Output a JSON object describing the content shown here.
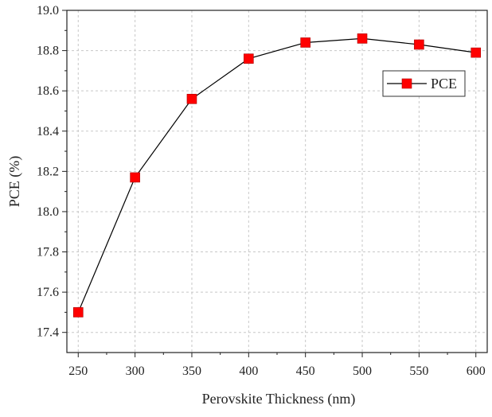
{
  "chart_data": {
    "type": "line",
    "title": "",
    "xlabel": "Perovskite Thickness (nm)",
    "ylabel": "PCE (%)",
    "xlim": [
      240,
      610
    ],
    "ylim": [
      17.3,
      19.0
    ],
    "x_ticks": [
      250,
      300,
      350,
      400,
      450,
      500,
      550,
      600
    ],
    "x_tick_labels": [
      "250",
      "300",
      "350",
      "400",
      "450",
      "500",
      "550",
      "600"
    ],
    "y_ticks": [
      17.4,
      17.6,
      17.8,
      18.0,
      18.2,
      18.4,
      18.6,
      18.8,
      19.0
    ],
    "y_tick_labels": [
      "17.4",
      "17.6",
      "17.8",
      "18.0",
      "18.2",
      "18.4",
      "18.6",
      "18.8",
      "19.0"
    ],
    "grid": true,
    "legend_position": "top-right",
    "series": [
      {
        "name": "PCE",
        "marker": "square",
        "line_color": "#000000",
        "marker_color": "#ff0000",
        "points": [
          {
            "x": 250,
            "y": 17.5
          },
          {
            "x": 300,
            "y": 18.17
          },
          {
            "x": 350,
            "y": 18.56
          },
          {
            "x": 400,
            "y": 18.76
          },
          {
            "x": 450,
            "y": 18.84
          },
          {
            "x": 500,
            "y": 18.86
          },
          {
            "x": 550,
            "y": 18.83
          },
          {
            "x": 600,
            "y": 18.79
          }
        ]
      }
    ]
  }
}
